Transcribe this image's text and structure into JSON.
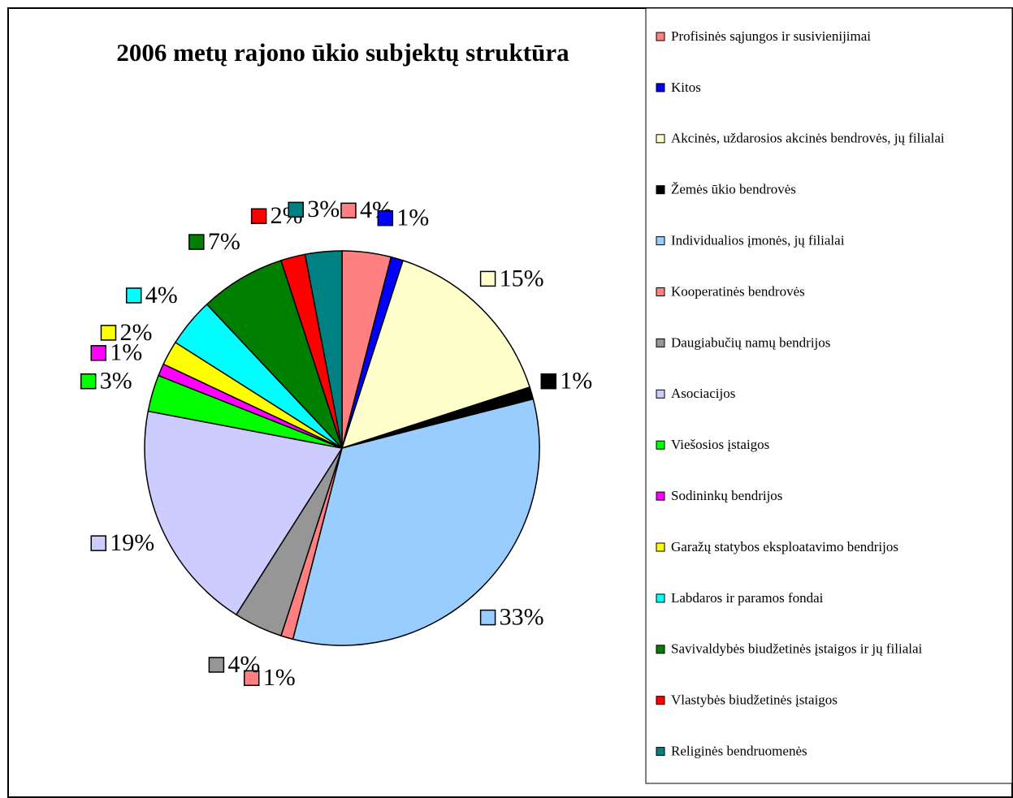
{
  "chart_data": {
    "type": "pie",
    "title": "2006 metų rajono ūkio subjektų struktūra",
    "categories": [
      "Profisinės sąjungos ir susivienijimai",
      "Kitos",
      "Akcinės, uždarosios akcinės bendrovės, jų filialai",
      "Žemės ūkio bendrovės",
      "Individualios įmonės, jų filialai",
      "Kooperatinės bendrovės",
      "Daugiabučių namų bendrijos",
      "Asociacijos",
      "Viešosios įstaigos",
      "Sodininkų bendrijos",
      "Garažų statybos eksploatavimo bendrijos",
      "Labdaros ir paramos fondai",
      "Savivaldybės biudžetinės įstaigos ir jų filialai",
      "Vlastybės biudžetinės įstaigos",
      "Religinės bendruomenės"
    ],
    "values": [
      4,
      1,
      15,
      1,
      33,
      1,
      4,
      19,
      3,
      1,
      2,
      4,
      7,
      2,
      3
    ],
    "value_labels": [
      "4%",
      "1%",
      "15%",
      "1%",
      "33%",
      "1%",
      "4%",
      "19%",
      "3%",
      "1%",
      "2%",
      "4%",
      "7%",
      "2%",
      "3%"
    ],
    "colors": [
      "#ff8080",
      "#0000ff",
      "#ffffcc",
      "#000000",
      "#99ccff",
      "#ff8080",
      "#969696",
      "#ccccff",
      "#00ff00",
      "#ff00ff",
      "#ffff00",
      "#00ffff",
      "#008000",
      "#ff0000",
      "#008080"
    ],
    "legend": "right"
  }
}
